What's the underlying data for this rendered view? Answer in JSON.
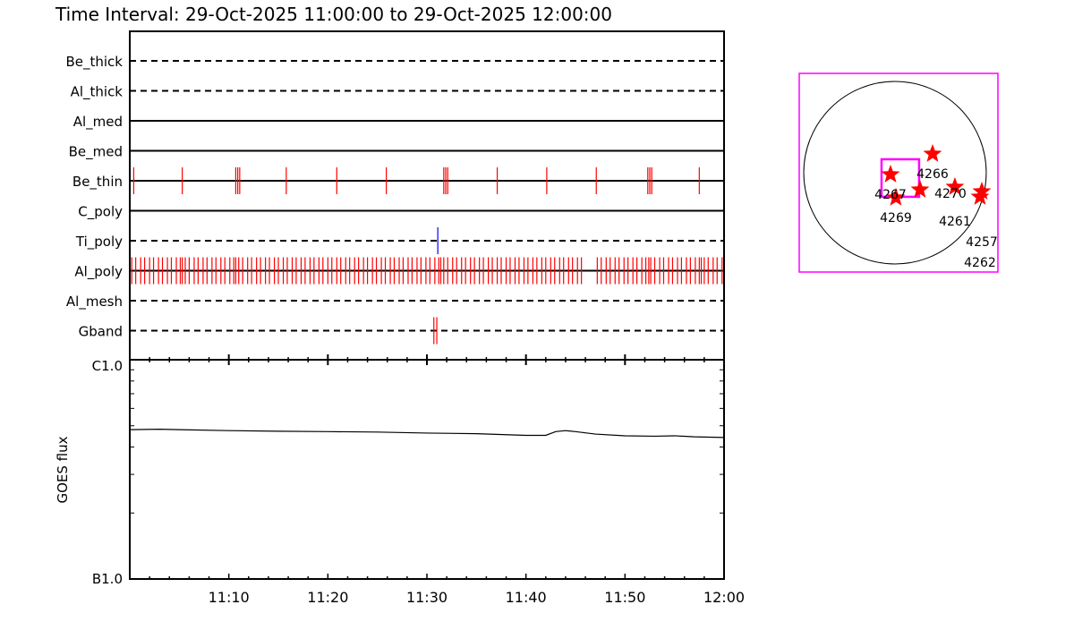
{
  "title": "Time Interval: 29-Oct-2025 11:00:00 to 29-Oct-2025 12:00:00",
  "chart_data": [
    {
      "type": "timeline",
      "x_unit": "minutes after 11:00",
      "xlim": [
        0,
        60
      ],
      "x_ticks": [
        "11:10",
        "11:20",
        "11:30",
        "11:40",
        "11:50",
        "12:00"
      ],
      "rows": [
        {
          "name": "Be_thick",
          "line": "dashed",
          "events": []
        },
        {
          "name": "Al_thick",
          "line": "dashed",
          "events": []
        },
        {
          "name": "Al_med",
          "line": "solid",
          "events": []
        },
        {
          "name": "Be_med",
          "line": "solid",
          "events": []
        },
        {
          "name": "Be_thin",
          "line": "solid",
          "color": "#ff0000",
          "events": [
            0.4,
            5.3,
            10.7,
            10.9,
            11.1,
            15.8,
            20.9,
            25.9,
            31.7,
            31.9,
            32.1,
            37.1,
            42.1,
            47.1,
            52.3,
            52.5,
            52.7,
            57.5
          ]
        },
        {
          "name": "C_poly",
          "line": "solid",
          "events": []
        },
        {
          "name": "Ti_poly",
          "line": "dashed",
          "color": "#0000ff",
          "events": [
            31.1
          ]
        },
        {
          "name": "Al_poly",
          "line": "solid",
          "color": "#ff0000",
          "events": [
            0.2,
            0.6,
            1.1,
            1.5,
            2.0,
            2.4,
            2.9,
            3.3,
            3.8,
            4.2,
            4.7,
            5.1,
            5.3,
            5.6,
            6.0,
            6.5,
            6.9,
            7.4,
            7.8,
            8.3,
            8.7,
            9.2,
            9.6,
            10.1,
            10.5,
            10.7,
            11.0,
            11.4,
            11.9,
            12.3,
            12.8,
            13.2,
            13.7,
            14.1,
            14.6,
            15.0,
            15.5,
            15.9,
            16.4,
            16.8,
            17.3,
            17.7,
            18.2,
            18.6,
            19.1,
            19.5,
            20.0,
            20.4,
            20.9,
            21.3,
            21.8,
            22.2,
            22.7,
            23.1,
            23.6,
            24.0,
            24.5,
            24.9,
            25.4,
            25.8,
            26.3,
            26.7,
            27.2,
            27.6,
            28.1,
            28.5,
            29.0,
            29.4,
            29.9,
            30.3,
            30.8,
            31.2,
            31.4,
            31.7,
            32.1,
            32.6,
            33.0,
            33.5,
            33.9,
            34.4,
            34.8,
            35.3,
            35.7,
            36.2,
            36.6,
            37.1,
            37.5,
            38.0,
            38.4,
            38.9,
            39.3,
            39.8,
            40.2,
            40.7,
            41.1,
            41.6,
            42.0,
            42.5,
            42.9,
            43.4,
            43.8,
            44.3,
            44.7,
            45.2,
            45.6,
            47.2,
            47.6,
            48.1,
            48.5,
            49.0,
            49.4,
            49.9,
            50.3,
            50.8,
            51.2,
            51.7,
            52.1,
            52.4,
            52.6,
            53.0,
            53.5,
            53.9,
            54.4,
            54.8,
            55.3,
            55.7,
            56.2,
            56.6,
            57.1,
            57.5,
            57.7,
            58.0,
            58.4,
            58.9,
            59.3,
            59.8
          ]
        },
        {
          "name": "Al_mesh",
          "line": "dashed",
          "events": []
        },
        {
          "name": "Gband",
          "line": "dashed",
          "color": "#ff0000",
          "events": [
            30.7,
            31.0
          ]
        }
      ]
    },
    {
      "type": "line",
      "ylabel": "GOES flux",
      "y_scale": "log",
      "ylim": [
        1e-07,
        1e-06
      ],
      "y_tick_labels": [
        "B1.0",
        "C1.0"
      ],
      "x_ticks": [
        "11:10",
        "11:20",
        "11:30",
        "11:40",
        "11:50",
        "12:00"
      ],
      "x": [
        0,
        3,
        5,
        10,
        15,
        20,
        25,
        30,
        35,
        40,
        42,
        43,
        44,
        45,
        47,
        50,
        53,
        55,
        57,
        60
      ],
      "y": [
        4.8e-07,
        4.82e-07,
        4.8e-07,
        4.75e-07,
        4.72e-07,
        4.7e-07,
        4.68e-07,
        4.63e-07,
        4.6e-07,
        4.52e-07,
        4.52e-07,
        4.7e-07,
        4.75e-07,
        4.7e-07,
        4.58e-07,
        4.5e-07,
        4.48e-07,
        4.5e-07,
        4.45e-07,
        4.42e-07
      ],
      "color": "#000000"
    },
    {
      "type": "scatter",
      "description_unit": "arcsec from disk center",
      "xlim": [
        -1045,
        1045
      ],
      "ylim": [
        -1045,
        1045
      ],
      "solar_radius": 960,
      "frame_color": "#ff00ff",
      "marker_color": "#ff0000",
      "fov": {
        "center": [
          56,
          -56
        ],
        "size": 395,
        "color": "#ff00ff"
      },
      "points": [
        {
          "label": "4266",
          "x": 395,
          "y": 198
        },
        {
          "label": "4267",
          "x": -47,
          "y": -19
        },
        {
          "label": "4269",
          "x": 9,
          "y": -263
        },
        {
          "label": "4270",
          "x": 263,
          "y": -179
        },
        {
          "label": "4261",
          "x": 630,
          "y": -150
        },
        {
          "label": "4257",
          "x": 913,
          "y": -198
        },
        {
          "label": "4262",
          "x": 894,
          "y": -254
        }
      ]
    }
  ]
}
